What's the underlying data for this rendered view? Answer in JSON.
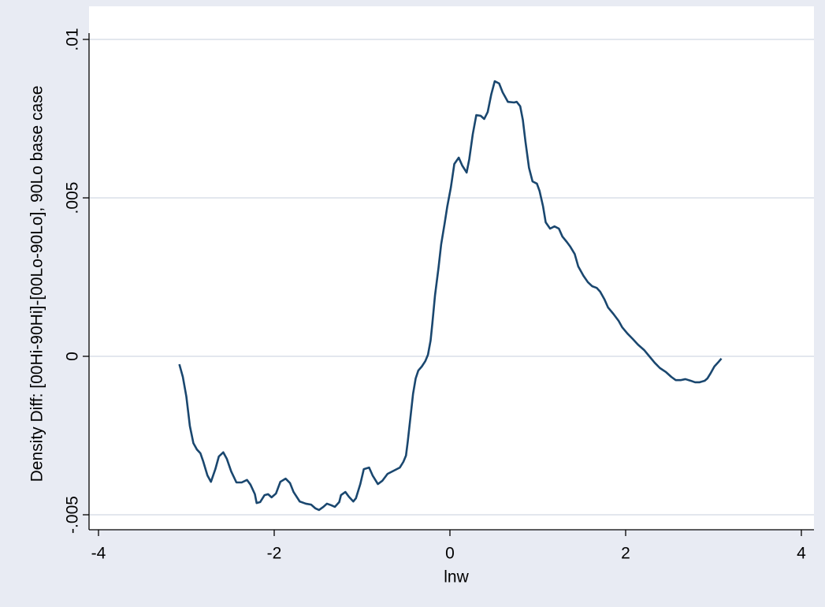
{
  "chart_data": {
    "type": "line",
    "xlabel": "lnw",
    "ylabel": "Density Diff: [00Hi-90Hi]-[00Lo-90Lo], 90Lo base case",
    "xlim": [
      -4,
      4
    ],
    "xticks": [
      -4,
      -2,
      0,
      2,
      4
    ],
    "ylim": [
      -0.005,
      0.01
    ],
    "yticks": [
      {
        "value": -0.005,
        "label": "-.005"
      },
      0,
      {
        "value": 0.005,
        "label": ".005"
      },
      {
        "value": 0.01,
        "label": ".01"
      }
    ],
    "grid": true,
    "series": [
      {
        "color": "#1a476f",
        "x": [
          -3.08,
          -3.04,
          -3.0,
          -2.96,
          -2.92,
          -2.88,
          -2.84,
          -2.81,
          -2.76,
          -2.72,
          -2.67,
          -2.63,
          -2.58,
          -2.54,
          -2.49,
          -2.43,
          -2.37,
          -2.31,
          -2.27,
          -2.22,
          -2.2,
          -2.16,
          -2.11,
          -2.07,
          -2.03,
          -1.98,
          -1.93,
          -1.87,
          -1.82,
          -1.78,
          -1.71,
          -1.64,
          -1.58,
          -1.53,
          -1.49,
          -1.44,
          -1.4,
          -1.35,
          -1.31,
          -1.26,
          -1.24,
          -1.19,
          -1.15,
          -1.1,
          -1.07,
          -1.02,
          -0.98,
          -0.92,
          -0.88,
          -0.82,
          -0.77,
          -0.71,
          -0.64,
          -0.57,
          -0.53,
          -0.5,
          -0.48,
          -0.45,
          -0.42,
          -0.39,
          -0.36,
          -0.32,
          -0.28,
          -0.25,
          -0.22,
          -0.2,
          -0.17,
          -0.13,
          -0.1,
          -0.06,
          -0.03,
          0.01,
          0.05,
          0.1,
          0.14,
          0.19,
          0.22,
          0.26,
          0.3,
          0.35,
          0.39,
          0.43,
          0.47,
          0.51,
          0.56,
          0.6,
          0.66,
          0.73,
          0.76,
          0.8,
          0.83,
          0.86,
          0.9,
          0.94,
          0.99,
          1.02,
          1.06,
          1.09,
          1.14,
          1.19,
          1.24,
          1.28,
          1.33,
          1.37,
          1.42,
          1.46,
          1.52,
          1.57,
          1.62,
          1.67,
          1.71,
          1.76,
          1.8,
          1.86,
          1.92,
          1.96,
          2.02,
          2.08,
          2.14,
          2.21,
          2.27,
          2.33,
          2.39,
          2.46,
          2.52,
          2.57,
          2.63,
          2.68,
          2.74,
          2.79,
          2.84,
          2.9,
          2.93,
          2.97,
          3.01,
          3.05,
          3.09
        ],
        "values": [
          -0.00025,
          -0.00065,
          -0.00127,
          -0.0022,
          -0.00274,
          -0.00294,
          -0.00306,
          -0.0033,
          -0.00376,
          -0.00396,
          -0.00356,
          -0.00316,
          -0.00303,
          -0.00323,
          -0.00363,
          -0.00398,
          -0.00398,
          -0.0039,
          -0.00405,
          -0.00435,
          -0.00463,
          -0.0046,
          -0.00438,
          -0.00435,
          -0.00445,
          -0.00433,
          -0.00396,
          -0.00386,
          -0.004,
          -0.00428,
          -0.00458,
          -0.00465,
          -0.00468,
          -0.0048,
          -0.00485,
          -0.00475,
          -0.00465,
          -0.0047,
          -0.00475,
          -0.0046,
          -0.00438,
          -0.00428,
          -0.00443,
          -0.00458,
          -0.00448,
          -0.00403,
          -0.00356,
          -0.00351,
          -0.00376,
          -0.00403,
          -0.00393,
          -0.00371,
          -0.00361,
          -0.00351,
          -0.00333,
          -0.00313,
          -0.00269,
          -0.00194,
          -0.00119,
          -0.0007,
          -0.00045,
          -0.00032,
          -0.00015,
          5e-05,
          0.0005,
          0.00104,
          0.00192,
          0.00279,
          0.00353,
          0.0042,
          0.00473,
          0.00532,
          0.00607,
          0.00627,
          0.00602,
          0.0058,
          0.00622,
          0.00701,
          0.00761,
          0.00759,
          0.00749,
          0.00771,
          0.00826,
          0.00868,
          0.00861,
          0.00833,
          0.00803,
          0.00801,
          0.00803,
          0.00789,
          0.00746,
          0.00677,
          0.00595,
          0.00552,
          0.00545,
          0.00522,
          0.00473,
          0.00423,
          0.00403,
          0.0041,
          0.00403,
          0.00378,
          0.00361,
          0.00346,
          0.00323,
          0.00284,
          0.00254,
          0.00234,
          0.00221,
          0.00216,
          0.00204,
          0.00179,
          0.00154,
          0.00134,
          0.00112,
          0.00092,
          0.00072,
          0.00055,
          0.00037,
          0.0002,
          0,
          -0.0002,
          -0.00037,
          -0.0005,
          -0.00065,
          -0.00075,
          -0.00075,
          -0.00072,
          -0.00077,
          -0.00082,
          -0.00082,
          -0.00077,
          -0.0007,
          -0.00052,
          -0.00032,
          -0.0002,
          -7e-05
        ]
      }
    ]
  }
}
